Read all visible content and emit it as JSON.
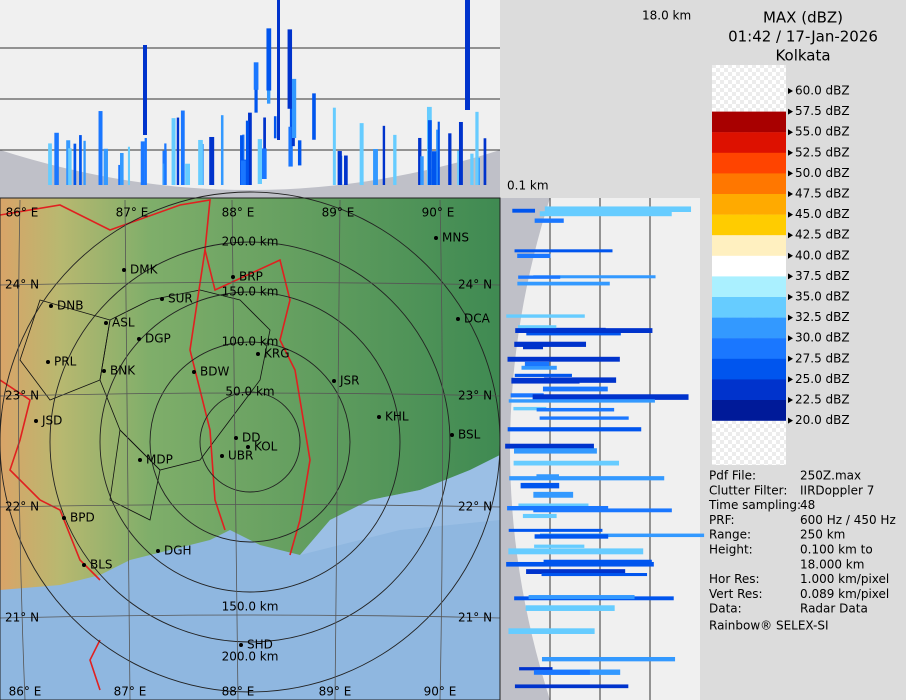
{
  "header": {
    "title": "MAX (dBZ)",
    "time": "01:42 / 17-Jan-2026",
    "station": "Kolkata"
  },
  "profile_labels": {
    "top_height": "18.0 km",
    "bottom_height": "0.1 km"
  },
  "legend": {
    "levels": [
      "60.0 dBZ",
      "57.5 dBZ",
      "55.0 dBZ",
      "52.5 dBZ",
      "50.0 dBZ",
      "47.5 dBZ",
      "45.0 dBZ",
      "42.5 dBZ",
      "40.0 dBZ",
      "37.5 dBZ",
      "35.0 dBZ",
      "32.5 dBZ",
      "30.0 dBZ",
      "27.5 dBZ",
      "25.0 dBZ",
      "22.5 dBZ",
      "20.0 dBZ"
    ],
    "band_colors": [
      "#f4f4f4",
      "#a80000",
      "#dd1100",
      "#ff4400",
      "#ff7700",
      "#ffaa00",
      "#ffcc00",
      "#fff0c0",
      "#ffffff",
      "#aaf0ff",
      "#66ccff",
      "#3399ff",
      "#1a77ff",
      "#0055ee",
      "#0033cc",
      "#001a99"
    ]
  },
  "info": {
    "rows": [
      [
        "Pdf File:",
        "250Z.max"
      ],
      [
        "Clutter Filter:",
        "IIRDoppler 7"
      ],
      [
        "Time sampling:",
        "48"
      ],
      [
        "PRF:",
        "600 Hz / 450 Hz"
      ],
      [
        "Range:",
        "250 km"
      ],
      [
        "Height:",
        "0.100 km to",
        "18.000 km"
      ],
      [
        "Hor Res:",
        "1.000 km/pixel"
      ],
      [
        "Vert Res:",
        "0.089 km/pixel"
      ],
      [
        "Data:",
        "Radar Data"
      ]
    ],
    "footer": "Rainbow® SELEX-SI"
  },
  "map": {
    "range_rings": [
      "50.0 km",
      "100.0 km",
      "150.0 km",
      "200.0 km"
    ],
    "longitudes": [
      "86° E",
      "87° E",
      "88° E",
      "89° E",
      "90° E"
    ],
    "latitudes": [
      "24° N",
      "23° N",
      "22° N",
      "21° N"
    ],
    "cities": [
      "MNS",
      "DMK",
      "BRP",
      "DNB",
      "SUR",
      "ASL",
      "DGP",
      "DCA",
      "KRG",
      "PRL",
      "BNK",
      "BDW",
      "JSR",
      "JSD",
      "KHL",
      "BSL",
      "DD",
      "KOL",
      "UBR",
      "MDP",
      "BPD",
      "DGH",
      "BLS",
      "SHD"
    ]
  }
}
